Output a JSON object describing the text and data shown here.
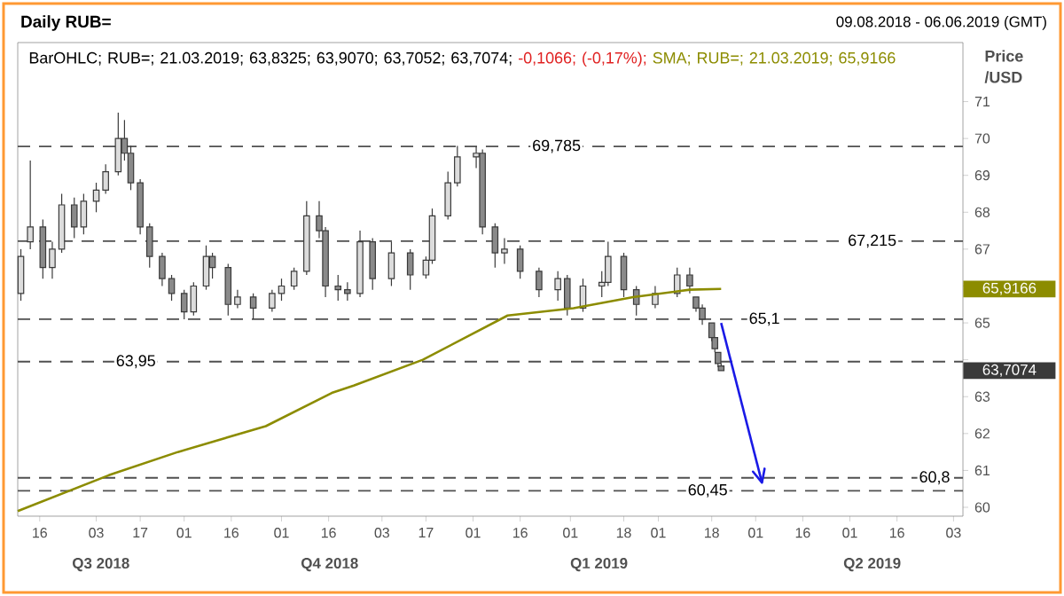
{
  "chart_data": {
    "type": "candlestick",
    "title": "Daily RUB=",
    "subtitle": "09.08.2018 - 06.06.2019 (GMT)",
    "ylabel": "Price /USD",
    "color": "#3a3a3a",
    "x": [
      "2018-08-10",
      "2018-08-13",
      "2018-08-17",
      "2018-08-20",
      "2018-08-23",
      "2018-08-27",
      "2018-08-30",
      "2018-09-03",
      "2018-09-06",
      "2018-09-10",
      "2018-09-12",
      "2018-09-14",
      "2018-09-17",
      "2018-09-20",
      "2018-09-24",
      "2018-09-27",
      "2018-10-01",
      "2018-10-04",
      "2018-10-08",
      "2018-10-10",
      "2018-10-15",
      "2018-10-18",
      "2018-10-23",
      "2018-10-29",
      "2018-11-01",
      "2018-11-05",
      "2018-11-09",
      "2018-11-13",
      "2018-11-15",
      "2018-11-19",
      "2018-11-22",
      "2018-11-26",
      "2018-11-30",
      "2018-12-06",
      "2018-12-12",
      "2018-12-17",
      "2018-12-19",
      "2018-12-24",
      "2018-12-27",
      "2019-01-02",
      "2019-01-04",
      "2019-01-08",
      "2019-01-11",
      "2019-01-16",
      "2019-01-22",
      "2019-01-28",
      "2019-01-31",
      "2019-02-05",
      "2019-02-11",
      "2019-02-13",
      "2019-02-18",
      "2019-02-22",
      "2019-02-28",
      "2019-03-07",
      "2019-03-11",
      "2019-03-13",
      "2019-03-15",
      "2019-03-18",
      "2019-03-19",
      "2019-03-20",
      "2019-03-21"
    ],
    "ohlc": [
      [
        65.8,
        67.0,
        65.6,
        66.8
      ],
      [
        67.2,
        69.4,
        67.0,
        67.6
      ],
      [
        67.6,
        67.8,
        66.2,
        66.5
      ],
      [
        66.5,
        67.2,
        66.2,
        67.0
      ],
      [
        67.0,
        68.5,
        66.9,
        68.2
      ],
      [
        68.2,
        68.4,
        67.3,
        67.6
      ],
      [
        67.6,
        68.5,
        67.4,
        68.3
      ],
      [
        68.3,
        68.8,
        68.0,
        68.6
      ],
      [
        68.6,
        69.3,
        68.5,
        69.1
      ],
      [
        69.1,
        70.7,
        69.0,
        70.0
      ],
      [
        70.0,
        70.5,
        69.4,
        69.6
      ],
      [
        69.6,
        69.8,
        68.6,
        68.8
      ],
      [
        68.8,
        68.9,
        67.4,
        67.6
      ],
      [
        67.6,
        67.7,
        66.5,
        66.8
      ],
      [
        66.8,
        66.9,
        66.0,
        66.2
      ],
      [
        66.2,
        66.3,
        65.6,
        65.8
      ],
      [
        65.8,
        65.9,
        65.1,
        65.3
      ],
      [
        65.3,
        66.1,
        65.2,
        66.0
      ],
      [
        66.0,
        67.1,
        65.9,
        66.8
      ],
      [
        66.8,
        66.9,
        66.2,
        66.5
      ],
      [
        66.5,
        66.6,
        65.2,
        65.5
      ],
      [
        65.5,
        65.9,
        65.4,
        65.7
      ],
      [
        65.7,
        65.8,
        65.1,
        65.4
      ],
      [
        65.4,
        65.9,
        65.3,
        65.8
      ],
      [
        65.8,
        66.2,
        65.6,
        66.0
      ],
      [
        66.0,
        66.5,
        65.9,
        66.4
      ],
      [
        66.4,
        68.3,
        66.3,
        67.9
      ],
      [
        67.9,
        68.3,
        67.3,
        67.5
      ],
      [
        67.5,
        67.6,
        65.7,
        66.0
      ],
      [
        66.0,
        66.3,
        65.6,
        65.9
      ],
      [
        65.9,
        66.1,
        65.6,
        65.8
      ],
      [
        65.8,
        67.5,
        65.7,
        67.2
      ],
      [
        67.2,
        67.3,
        65.9,
        66.2
      ],
      [
        66.2,
        67.2,
        66.0,
        66.9
      ],
      [
        66.9,
        67.0,
        65.9,
        66.3
      ],
      [
        66.3,
        66.8,
        66.2,
        66.7
      ],
      [
        66.7,
        68.1,
        66.6,
        67.9
      ],
      [
        67.9,
        69.1,
        67.8,
        68.8
      ],
      [
        68.8,
        69.8,
        68.7,
        69.5
      ],
      [
        69.5,
        69.785,
        69.2,
        69.6
      ],
      [
        69.6,
        69.7,
        67.4,
        67.6
      ],
      [
        67.6,
        67.7,
        66.5,
        66.9
      ],
      [
        66.9,
        67.3,
        66.6,
        67.0
      ],
      [
        67.0,
        67.1,
        66.2,
        66.4
      ],
      [
        66.4,
        66.5,
        65.7,
        65.9
      ],
      [
        65.9,
        66.4,
        65.6,
        66.2
      ],
      [
        66.2,
        66.3,
        65.2,
        65.4
      ],
      [
        65.4,
        66.2,
        65.3,
        66.0
      ],
      [
        66.0,
        66.4,
        65.7,
        66.1
      ],
      [
        66.1,
        67.2,
        66.0,
        66.8
      ],
      [
        66.8,
        66.9,
        65.7,
        65.9
      ],
      [
        65.9,
        66.0,
        65.2,
        65.5
      ],
      [
        65.5,
        66.0,
        65.4,
        65.8
      ],
      [
        65.8,
        66.5,
        65.7,
        66.3
      ],
      [
        66.3,
        66.5,
        65.8,
        66.0
      ],
      [
        65.7,
        65.7,
        65.3,
        65.4
      ],
      [
        65.4,
        65.5,
        64.95,
        65.1
      ],
      [
        65.0,
        65.0,
        64.5,
        64.6
      ],
      [
        64.6,
        64.6,
        64.2,
        64.3
      ],
      [
        64.2,
        64.2,
        63.8,
        63.9
      ],
      [
        63.8325,
        63.907,
        63.7052,
        63.7074
      ]
    ],
    "series": [
      {
        "type": "line",
        "color": "#8c8c00",
        "x": [
          "2018-08-09",
          "2018-09-07",
          "2018-09-29",
          "2018-10-27",
          "2018-11-17",
          "2018-11-24",
          "2018-12-16",
          "2019-01-12",
          "2019-02-02",
          "2019-02-21",
          "2019-03-11",
          "2019-03-21"
        ],
        "values": [
          59.9,
          60.87,
          61.5,
          62.2,
          63.1,
          63.3,
          64.0,
          65.2,
          65.4,
          65.7,
          65.9,
          65.92
        ]
      },
      {
        "type": "line",
        "color": "#1a1ae6",
        "x": [
          "2019-03-21",
          "2019-04-03"
        ],
        "values": [
          65.0,
          60.67
        ]
      }
    ],
    "xlim": [
      "2018-08-09",
      "2019-06-06"
    ],
    "xticks": [
      {
        "value": "2018-08-16",
        "label": "16"
      },
      {
        "value": "2018-09-03",
        "label": "03"
      },
      {
        "value": "2018-09-17",
        "label": "17"
      },
      {
        "value": "2018-10-01",
        "label": "01"
      },
      {
        "value": "2018-10-16",
        "label": "16"
      },
      {
        "value": "2018-11-01",
        "label": "01"
      },
      {
        "value": "2018-11-16",
        "label": "16"
      },
      {
        "value": "2018-12-03",
        "label": "03"
      },
      {
        "value": "2018-12-17",
        "label": "17"
      },
      {
        "value": "2019-01-01",
        "label": "01"
      },
      {
        "value": "2019-01-16",
        "label": "16"
      },
      {
        "value": "2019-02-01",
        "label": "01"
      },
      {
        "value": "2019-02-18",
        "label": "18"
      },
      {
        "value": "2019-03-01",
        "label": "01"
      },
      {
        "value": "2019-03-18",
        "label": "18"
      },
      {
        "value": "2019-04-01",
        "label": "01"
      },
      {
        "value": "2019-04-16",
        "label": "16"
      },
      {
        "value": "2019-05-01",
        "label": "01"
      },
      {
        "value": "2019-05-16",
        "label": "16"
      },
      {
        "value": "2019-06-03",
        "label": "03"
      }
    ],
    "ylim": [
      59.76,
      72.6
    ],
    "yticks": [
      60,
      61,
      62,
      63,
      {
        "value": 64,
        "label": null
      },
      65,
      {
        "value": 66,
        "label": null
      },
      67,
      68,
      69,
      70,
      71
    ],
    "ref_lines": [
      {
        "axis": "y",
        "value": 69.785,
        "label": "69,785",
        "color": "#505050",
        "line_style": "dashed"
      },
      {
        "axis": "y",
        "value": 67.215,
        "label": "67,215",
        "color": "#505050",
        "line_style": "dashed"
      },
      {
        "axis": "y",
        "value": 65.1,
        "label": "65,1",
        "color": "#505050",
        "line_style": "dashed"
      },
      {
        "axis": "y",
        "value": 63.95,
        "label": "63,95",
        "color": "#505050",
        "line_style": "dashed"
      },
      {
        "axis": "y",
        "value": 60.8,
        "label": "60,8",
        "color": "#505050",
        "line_style": "dashed"
      },
      {
        "axis": "y",
        "value": 60.45,
        "label": "60,45",
        "color": "#505050",
        "line_style": "dashed"
      }
    ],
    "annotations": [
      "BarOHLC; RUB=; 21.03.2019; 63,8325; 63,9070; 63,7052; 63,7074;",
      "-0,1066; (-0,17%);",
      "SMA; RUB=; 21.03.2019; 65,9166",
      "65,9166",
      "63,7074",
      "Q3 2018",
      "Q4 2018",
      "Q1 2019",
      "Q2 2019"
    ]
  }
}
